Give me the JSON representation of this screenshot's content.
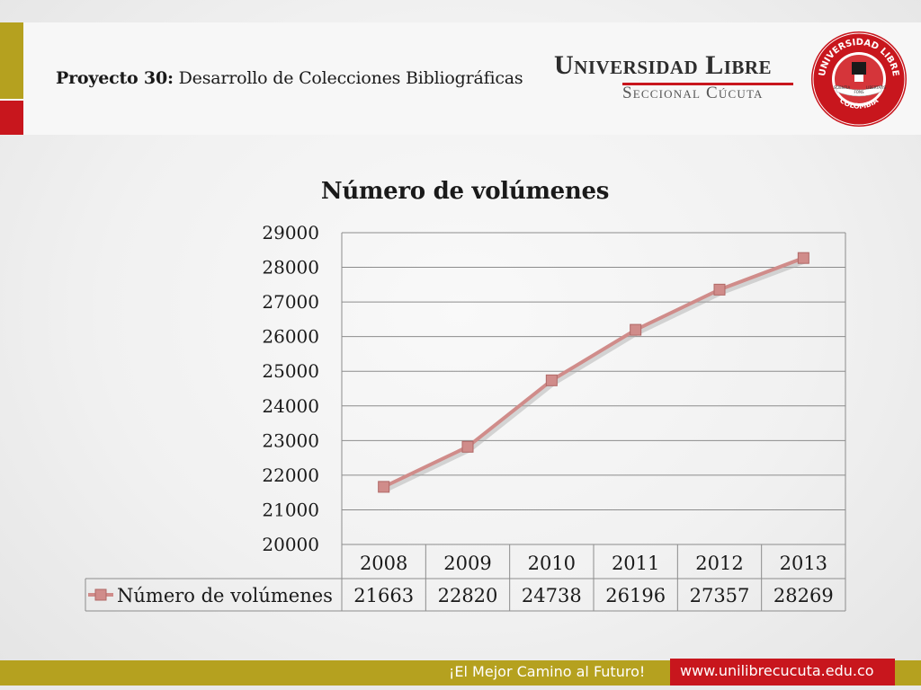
{
  "header": {
    "project_label": "Proyecto 30:",
    "project_title": "Desarrollo de Colecciones Bibliográficas",
    "university_name": "Universidad Libre",
    "university_branch": "Seccional Cúcuta",
    "seal": {
      "top_text": "UNIVERSIDAD LIBRE",
      "bottom_text": "COLOMBIA",
      "ribbon_left": "SCIENTIA",
      "ribbon_middle": "FONS",
      "ribbon_right": "LIBERTATIS"
    },
    "colors": {
      "gold": "#b5a11f",
      "red": "#c8161d"
    }
  },
  "chart_data": {
    "type": "line",
    "title": "Número de volúmenes",
    "categories": [
      "2008",
      "2009",
      "2010",
      "2011",
      "2012",
      "2013"
    ],
    "series": [
      {
        "name": "Número de volúmenes",
        "values": [
          21663,
          22820,
          24738,
          26196,
          27357,
          28269
        ],
        "color": "#d08c8a"
      }
    ],
    "ylim": [
      20000,
      29000
    ],
    "yticks": [
      20000,
      21000,
      22000,
      23000,
      24000,
      25000,
      26000,
      27000,
      28000,
      29000
    ],
    "grid": true,
    "legend": "data-table-below",
    "marker": "square"
  },
  "footer": {
    "slogan": "¡El Mejor Camino al Futuro!",
    "website": "www.unilibrecucuta.edu.co"
  }
}
